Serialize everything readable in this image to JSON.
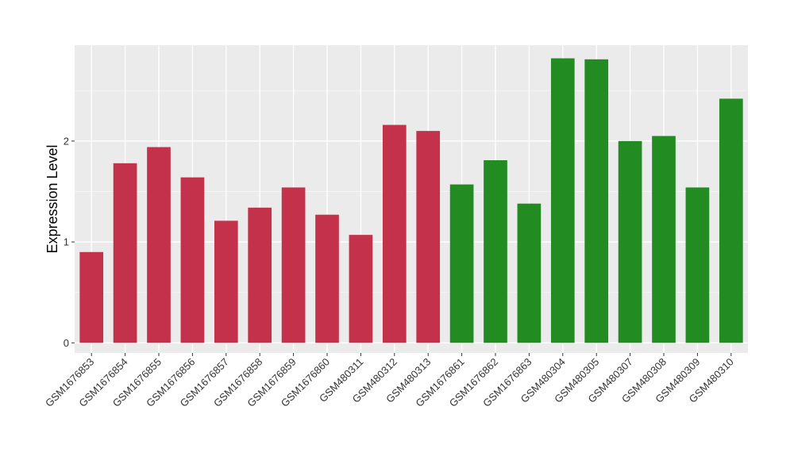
{
  "chart_data": {
    "type": "bar",
    "title": "",
    "xlabel": "",
    "ylabel": "Expression Level",
    "ylim": [
      -0.1,
      2.95
    ],
    "yticks": [
      0,
      1,
      2
    ],
    "grid": true,
    "legend": "none",
    "panel_background": "#ebebeb",
    "categories": [
      "GSM1676853",
      "GSM1676854",
      "GSM1676855",
      "GSM1676856",
      "GSM1676857",
      "GSM1676858",
      "GSM1676859",
      "GSM1676860",
      "GSM480311",
      "GSM480312",
      "GSM480313",
      "GSM1676861",
      "GSM1676862",
      "GSM1676863",
      "GSM480304",
      "GSM480305",
      "GSM480307",
      "GSM480308",
      "GSM480309",
      "GSM480310"
    ],
    "values": [
      0.9,
      1.78,
      1.94,
      1.64,
      1.21,
      1.34,
      1.54,
      1.27,
      1.07,
      2.16,
      2.1,
      1.57,
      1.81,
      1.38,
      2.82,
      2.81,
      2.0,
      2.05,
      1.54,
      2.42
    ],
    "colors": [
      "#c4314b",
      "#c4314b",
      "#c4314b",
      "#c4314b",
      "#c4314b",
      "#c4314b",
      "#c4314b",
      "#c4314b",
      "#c4314b",
      "#c4314b",
      "#c4314b",
      "#228b22",
      "#228b22",
      "#228b22",
      "#228b22",
      "#228b22",
      "#228b22",
      "#228b22",
      "#228b22",
      "#228b22"
    ]
  }
}
